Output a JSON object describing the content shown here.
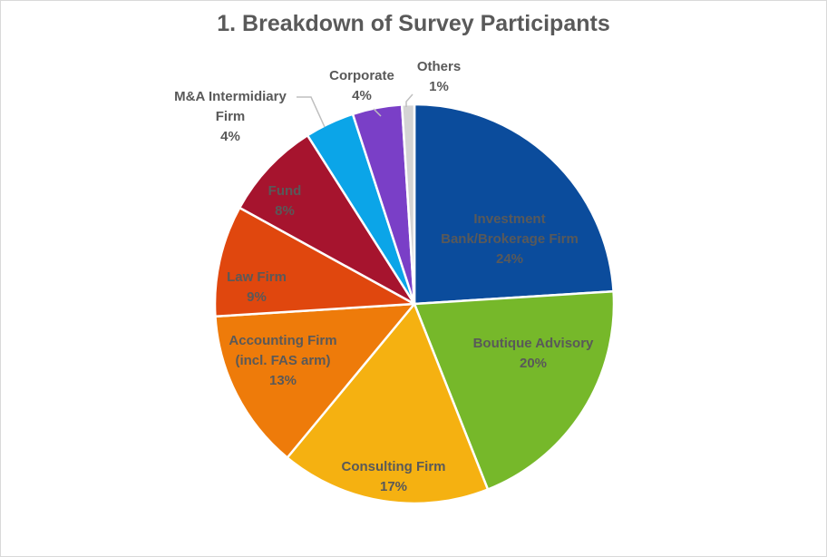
{
  "chart_data": {
    "type": "pie",
    "title": "1. Breakdown of Survey Participants",
    "slices": [
      {
        "label": "Investment Bank/Brokerage Firm",
        "value": 24,
        "value_label": "24%",
        "color": "#0B4C9C"
      },
      {
        "label": "Boutique Advisory",
        "value": 20,
        "value_label": "20%",
        "color": "#76B82A"
      },
      {
        "label": "Consulting Firm",
        "value": 17,
        "value_label": "17%",
        "color": "#F5B111"
      },
      {
        "label": "Accounting Firm (incl. FAS arm)",
        "value": 13,
        "value_label": "13%",
        "color": "#EE7B0A"
      },
      {
        "label": "Law Firm",
        "value": 9,
        "value_label": "9%",
        "color": "#E0470E"
      },
      {
        "label": "Fund",
        "value": 8,
        "value_label": "8%",
        "color": "#A6142E"
      },
      {
        "label": "M&A Intermidiary Firm",
        "value": 4,
        "value_label": "4%",
        "color": "#0BA5E8"
      },
      {
        "label": "Corporate",
        "value": 4,
        "value_label": "4%",
        "color": "#7A3FC7"
      },
      {
        "label": "Others",
        "value": 1,
        "value_label": "1%",
        "color": "#D4D4D4"
      }
    ]
  }
}
